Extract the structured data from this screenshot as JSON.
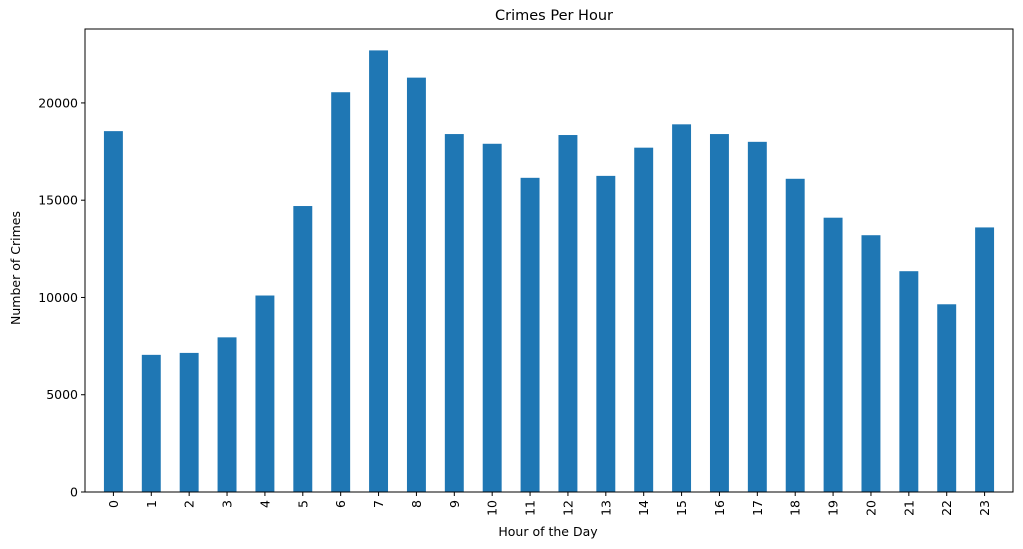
{
  "chart_data": {
    "type": "bar",
    "title": "Crimes Per Hour",
    "xlabel": "Hour of the Day",
    "ylabel": "Number of Crimes",
    "categories": [
      "0",
      "1",
      "2",
      "3",
      "4",
      "5",
      "6",
      "7",
      "8",
      "9",
      "10",
      "11",
      "12",
      "13",
      "14",
      "15",
      "16",
      "17",
      "18",
      "19",
      "20",
      "21",
      "22",
      "23"
    ],
    "values": [
      18550,
      7050,
      7150,
      7950,
      10100,
      14700,
      20550,
      22700,
      21300,
      18400,
      17900,
      16150,
      18350,
      16250,
      17700,
      18900,
      18400,
      18000,
      16100,
      14100,
      13200,
      11350,
      9650,
      13600
    ],
    "ylim": [
      0,
      23800
    ],
    "yticks": [
      0,
      5000,
      10000,
      15000,
      20000
    ],
    "ytick_labels": [
      "0",
      "5000",
      "10000",
      "15000",
      "20000"
    ],
    "bar_color": "#1f77b4",
    "legend": "none",
    "grid": false
  }
}
